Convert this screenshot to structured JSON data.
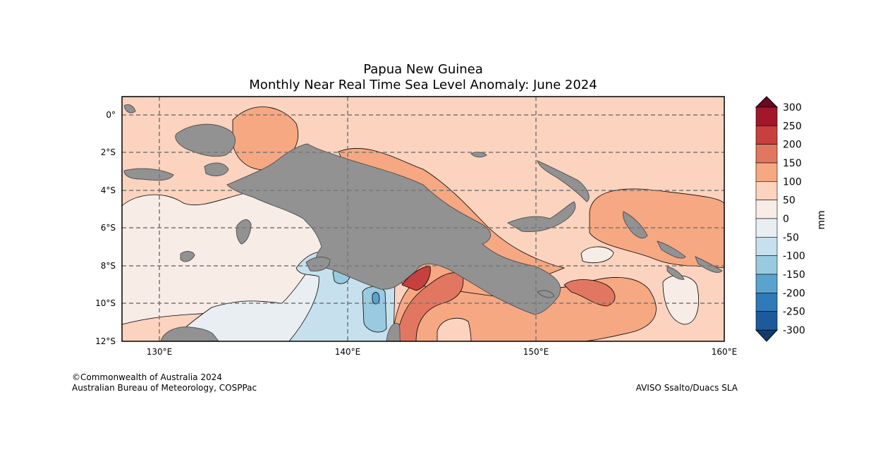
{
  "title": {
    "line1": "Papua New Guinea",
    "line2": "Monthly Near Real Time Sea Level Anomaly: June 2024"
  },
  "map": {
    "lon_ticks": [
      "130°E",
      "140°E",
      "150°E",
      "160°E"
    ],
    "lat_ticks": [
      "0°",
      "2°S",
      "4°S",
      "6°S",
      "8°S",
      "10°S",
      "12°S"
    ],
    "land_color": "#929292"
  },
  "colorbar": {
    "unit": "mm",
    "levels": [
      "300",
      "250",
      "200",
      "150",
      "100",
      "50",
      "0",
      "-50",
      "-100",
      "-150",
      "-200",
      "-250",
      "-300"
    ],
    "colors": [
      "#a2172a",
      "#c8403d",
      "#e27761",
      "#f6a882",
      "#fbd3be",
      "#f8ece6",
      "#e8eef2",
      "#c7e0ed",
      "#9acae0",
      "#5ba3cf",
      "#2f7ab8",
      "#1d5a9b"
    ],
    "over_color": "#6b0a1f",
    "under_color": "#0e3d73"
  },
  "footer": {
    "credit_line1": "©Commonwealth of Australia 2024",
    "credit_line2": "Australian Bureau of Meteorology, COSPPac",
    "source": "AVISO Ssalto/Duacs SLA"
  }
}
